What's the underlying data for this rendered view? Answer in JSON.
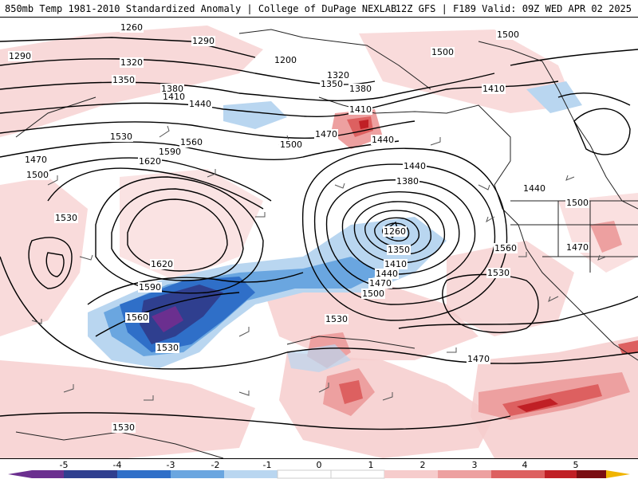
{
  "header": {
    "title_left": "850mb Temp 1981-2010 Standardized Anomaly | College of DuPage NEXLAB",
    "title_right": "12Z GFS | F189 Valid: 09Z WED APR 02 2025"
  },
  "map": {
    "contour_labels": [
      "1260",
      "1290",
      "1200",
      "1320",
      "1350",
      "1290",
      "1320",
      "1350",
      "1380",
      "1410",
      "1380",
      "1410",
      "1440",
      "1410",
      "1440",
      "1470",
      "1500",
      "1530",
      "1560",
      "1590",
      "1620",
      "1470",
      "1500",
      "1530",
      "1620",
      "1590",
      "1560",
      "1530",
      "1440",
      "1380",
      "1260",
      "1350",
      "1410",
      "1440",
      "1470",
      "1500",
      "1530",
      "1560",
      "1530",
      "1530",
      "1500",
      "1440",
      "1470",
      "1470",
      "1500",
      "1500"
    ],
    "colors": {
      "anom_neg5": "#6b2f8f",
      "anom_neg4": "#2f3f8f",
      "anom_neg3": "#2f6fc8",
      "anom_neg2": "#6aa6e0",
      "anom_neg1": "#b9d6f0",
      "anom_pos1": "#f6cccc",
      "anom_pos2": "#eda0a0",
      "anom_pos3": "#dd6060",
      "anom_pos4": "#c01f25",
      "anom_pos5": "#7a0d12",
      "anom_pos6": "#f0b400"
    }
  },
  "colorbar": {
    "labels": [
      "-5",
      "-4",
      "-3",
      "-2",
      "-1",
      "0",
      "1",
      "2",
      "3",
      "4",
      "5"
    ],
    "colors": [
      "#6b2f8f",
      "#2f3f8f",
      "#2f6fc8",
      "#6aa6e0",
      "#b9d6f0",
      "#ffffff",
      "#ffffff",
      "#f6cccc",
      "#eda0a0",
      "#dd6060",
      "#c01f25",
      "#7a0d12",
      "#f0b400"
    ]
  }
}
